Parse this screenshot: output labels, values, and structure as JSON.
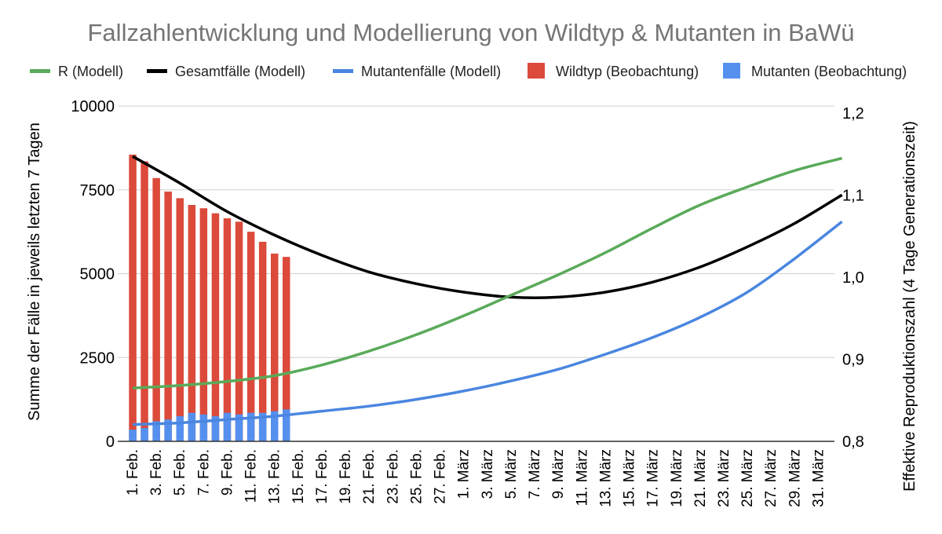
{
  "chart_data": {
    "type": "combo",
    "title": "Fallzahlentwicklung und Modellierung von Wildtyp & Mutanten in BaWü",
    "y_left_label": "Summe der Fälle in jeweils letzten 7 Tagen",
    "y_right_label": "Effektive Reproduktionszahl (4 Tage Generationszeit)",
    "y_left_range": [
      0,
      10000
    ],
    "y_left_ticks": [
      "0",
      "2500",
      "5000",
      "7500",
      "10000"
    ],
    "y_right_range": [
      0.8,
      1.2
    ],
    "y_right_ticks": [
      "0,8",
      "0,9",
      "1,0",
      "1,1",
      "1,2"
    ],
    "x_tick_labels": [
      "1. Feb.",
      "3. Feb.",
      "5. Feb.",
      "7. Feb.",
      "9. Feb.",
      "11. Feb.",
      "13. Feb.",
      "15. Feb.",
      "17. Feb.",
      "19. Feb.",
      "21. Feb.",
      "23. Feb.",
      "25. Feb.",
      "27. Feb.",
      "1. März",
      "3. März",
      "5. März",
      "7. März",
      "9. März",
      "11. März",
      "13. März",
      "15. März",
      "17. März",
      "19. März",
      "21. März",
      "23. März",
      "25. März",
      "27. März",
      "29. März",
      "31. März"
    ],
    "legend_position": "top",
    "grid": true,
    "colors": {
      "r_model": "#5aaa5a",
      "total_model": "#000000",
      "mutant_model": "#4a86e0",
      "wildtype_obs": "#db4a3a",
      "mutant_obs": "#5590ee"
    },
    "legend": [
      {
        "key": "r_model",
        "label": "R (Modell)",
        "kind": "line"
      },
      {
        "key": "total_model",
        "label": "Gesamtfälle (Modell)",
        "kind": "line"
      },
      {
        "key": "mutant_model",
        "label": "Mutantenfälle (Modell)",
        "kind": "line"
      },
      {
        "key": "wildtype_obs",
        "label": "Wildtyp (Beobachtung)",
        "kind": "box"
      },
      {
        "key": "mutant_obs",
        "label": "Mutanten (Beobachtung)",
        "kind": "box"
      }
    ],
    "observation_days": [
      1,
      2,
      3,
      4,
      5,
      6,
      7,
      8,
      9,
      10,
      11,
      12,
      13,
      14
    ],
    "wildtype_obs": [
      8550,
      8350,
      7850,
      7450,
      7250,
      7050,
      6950,
      6800,
      6650,
      6550,
      6250,
      5950,
      5600,
      5500
    ],
    "mutant_obs": [
      350,
      400,
      600,
      650,
      750,
      850,
      800,
      750,
      850,
      800,
      850,
      850,
      900,
      950
    ],
    "model_days": [
      1,
      5,
      9,
      13,
      17,
      21,
      25,
      29,
      33,
      37,
      41,
      45,
      49,
      53,
      57,
      61
    ],
    "total_model": [
      8500,
      7700,
      6850,
      6150,
      5550,
      5050,
      4700,
      4450,
      4300,
      4300,
      4450,
      4750,
      5200,
      5800,
      6500,
      7350
    ],
    "mutant_model": [
      500,
      550,
      650,
      750,
      900,
      1050,
      1250,
      1500,
      1800,
      2150,
      2600,
      3100,
      3700,
      4450,
      5450,
      6550
    ],
    "r_model": [
      0.865,
      0.868,
      0.873,
      0.88,
      0.893,
      0.91,
      0.93,
      0.953,
      0.978,
      1.003,
      1.03,
      1.06,
      1.088,
      1.11,
      1.13,
      1.145
    ]
  }
}
